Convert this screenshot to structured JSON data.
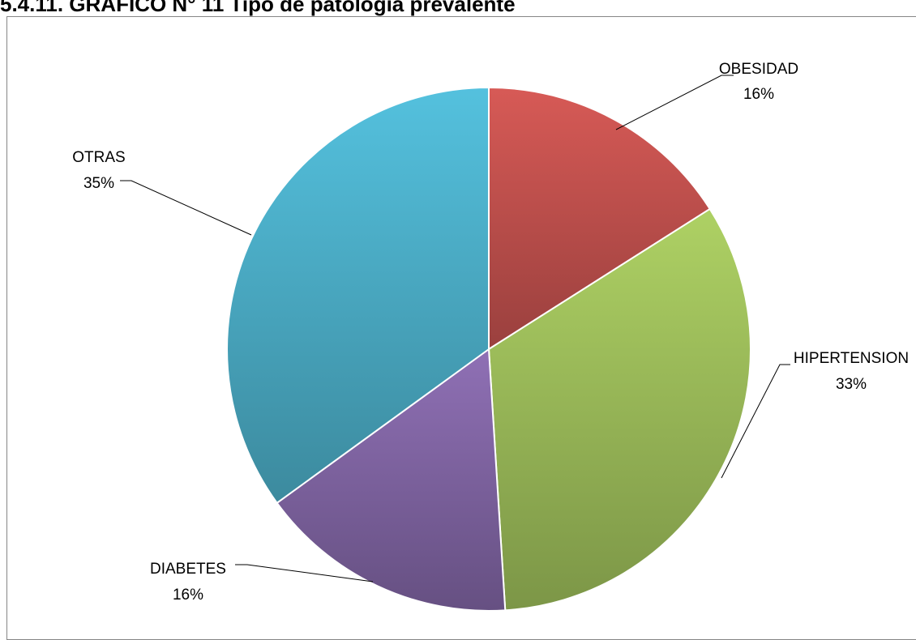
{
  "page": {
    "heading": "5.4.11. GRAFICO N° 11 Tipo de patología prevalente"
  },
  "chart_data": {
    "type": "pie",
    "title": "",
    "start": "top-center, clockwise",
    "slices": [
      {
        "label": "OBESIDAD",
        "value": 16,
        "percent_label": "16%",
        "color": "#c0504d"
      },
      {
        "label": "HIPERTENSION",
        "value": 33,
        "percent_label": "33%",
        "color": "#9bbb59"
      },
      {
        "label": "DIABETES",
        "value": 16,
        "percent_label": "16%",
        "color": "#8064a2"
      },
      {
        "label": "OTRAS",
        "value": 35,
        "percent_label": "35%",
        "color": "#4bacc6"
      }
    ]
  }
}
